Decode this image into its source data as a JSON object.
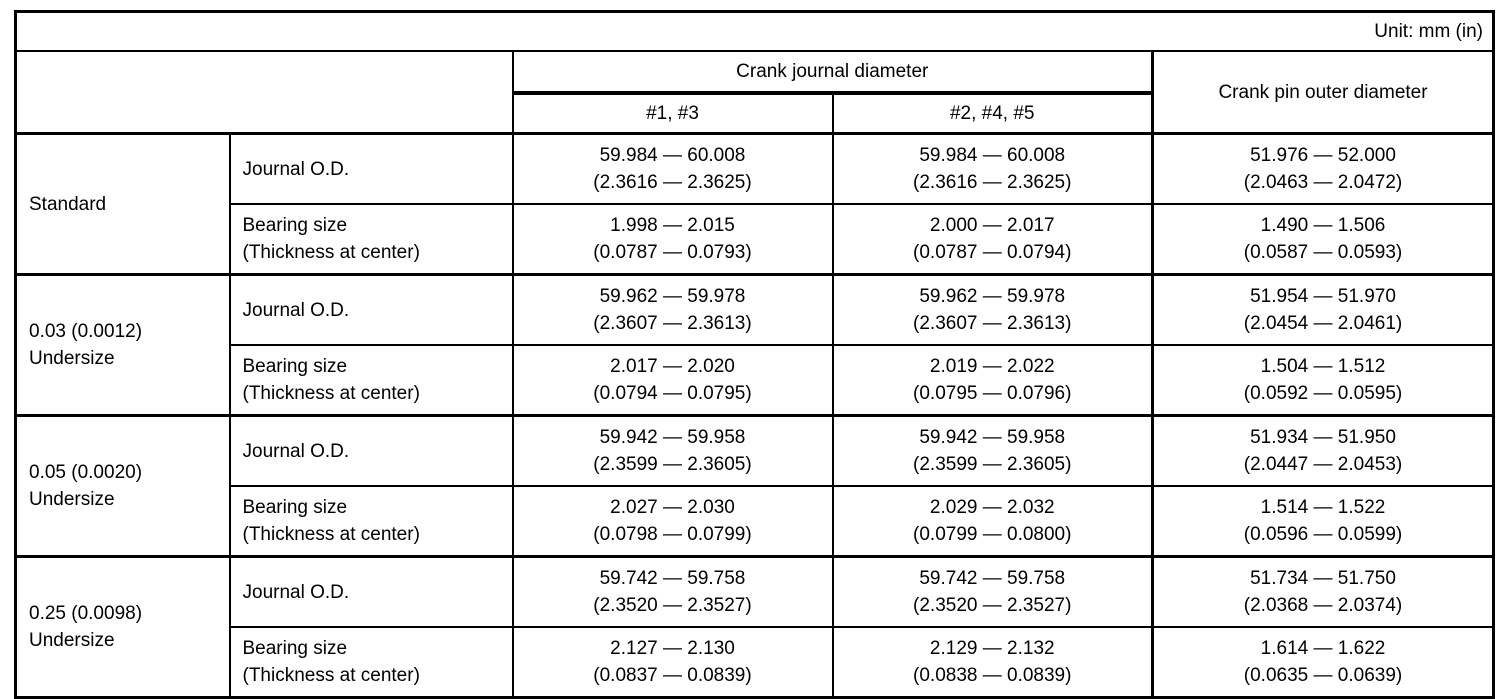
{
  "unit_label": "Unit: mm (in)",
  "header": {
    "crank_journal_diameter": "Crank journal diameter",
    "journals_13": "#1, #3",
    "journals_245": "#2, #4, #5",
    "crank_pin_outer_diameter": "Crank pin outer diameter"
  },
  "row_labels": {
    "journal_od": "Journal O.D.",
    "bearing_line1": "Bearing size",
    "bearing_line2": "(Thickness at center)"
  },
  "groups": [
    {
      "label_line1": "Standard",
      "label_line2": "",
      "journal_od": {
        "j13_mm": "59.984 — 60.008",
        "j13_in": "(2.3616 — 2.3625)",
        "j245_mm": "59.984 — 60.008",
        "j245_in": "(2.3616 — 2.3625)",
        "pin_mm": "51.976 — 52.000",
        "pin_in": "(2.0463 — 2.0472)"
      },
      "bearing": {
        "j13_mm": "1.998 — 2.015",
        "j13_in": "(0.0787 — 0.0793)",
        "j245_mm": "2.000 — 2.017",
        "j245_in": "(0.0787 — 0.0794)",
        "pin_mm": "1.490 — 1.506",
        "pin_in": "(0.0587 — 0.0593)"
      }
    },
    {
      "label_line1": "0.03 (0.0012)",
      "label_line2": "Undersize",
      "journal_od": {
        "j13_mm": "59.962 — 59.978",
        "j13_in": "(2.3607 — 2.3613)",
        "j245_mm": "59.962 — 59.978",
        "j245_in": "(2.3607 — 2.3613)",
        "pin_mm": "51.954 — 51.970",
        "pin_in": "(2.0454 — 2.0461)"
      },
      "bearing": {
        "j13_mm": "2.017 — 2.020",
        "j13_in": "(0.0794 — 0.0795)",
        "j245_mm": "2.019 — 2.022",
        "j245_in": "(0.0795 — 0.0796)",
        "pin_mm": "1.504 — 1.512",
        "pin_in": "(0.0592 — 0.0595)"
      }
    },
    {
      "label_line1": "0.05 (0.0020)",
      "label_line2": "Undersize",
      "journal_od": {
        "j13_mm": "59.942 — 59.958",
        "j13_in": "(2.3599 — 2.3605)",
        "j245_mm": "59.942 — 59.958",
        "j245_in": "(2.3599 — 2.3605)",
        "pin_mm": "51.934 — 51.950",
        "pin_in": "(2.0447 — 2.0453)"
      },
      "bearing": {
        "j13_mm": "2.027 — 2.030",
        "j13_in": "(0.0798 — 0.0799)",
        "j245_mm": "2.029 — 2.032",
        "j245_in": "(0.0799 — 0.0800)",
        "pin_mm": "1.514 — 1.522",
        "pin_in": "(0.0596 — 0.0599)"
      }
    },
    {
      "label_line1": "0.25 (0.0098)",
      "label_line2": "Undersize",
      "journal_od": {
        "j13_mm": "59.742 — 59.758",
        "j13_in": "(2.3520 — 2.3527)",
        "j245_mm": "59.742 — 59.758",
        "j245_in": "(2.3520 — 2.3527)",
        "pin_mm": "51.734 — 51.750",
        "pin_in": "(2.0368 — 2.0374)"
      },
      "bearing": {
        "j13_mm": "2.127 — 2.130",
        "j13_in": "(0.0837 — 0.0839)",
        "j245_mm": "2.129 — 2.132",
        "j245_in": "(0.0838 — 0.0839)",
        "pin_mm": "1.614 — 1.622",
        "pin_in": "(0.0635 — 0.0639)"
      }
    }
  ],
  "colors": {
    "border": "#000000",
    "background": "#ffffff",
    "text": "#000000"
  }
}
